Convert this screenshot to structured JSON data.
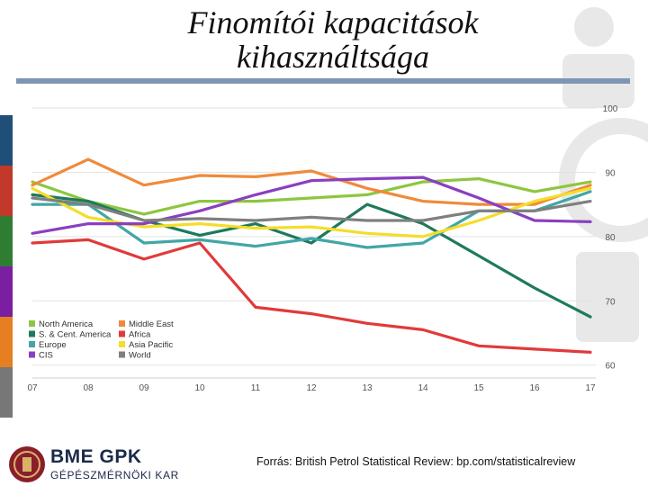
{
  "slide": {
    "title_line1": "Finomítói kapacitások",
    "title_line2": "kihasználtsága",
    "source": "Forrás: British Petrol Statistical Review: bp.com/statisticalreview",
    "logo_main": "BME GPK",
    "logo_sub": "GÉPÉSZMÉRNÖKI KAR"
  },
  "colors": {
    "title_bar": "#7e96b4",
    "side_stripes": [
      "#1f4e79",
      "#c0392b",
      "#2e7d32",
      "#7b1fa2",
      "#e67e22",
      "#777777"
    ]
  },
  "chart_data": {
    "type": "line",
    "x": [
      "07",
      "08",
      "09",
      "10",
      "11",
      "12",
      "13",
      "14",
      "15",
      "16",
      "17"
    ],
    "y_ticks": [
      "100",
      "90",
      "80",
      "70",
      "60"
    ],
    "ylim": [
      58,
      100
    ],
    "legend_position": "bottom-left",
    "grid": true,
    "series": [
      {
        "name": "North America",
        "color": "#8dc63f",
        "values": [
          88.5,
          85.5,
          83.5,
          85.5,
          85.5,
          86,
          86.5,
          88.5,
          89,
          87,
          88.5
        ]
      },
      {
        "name": "Middle East",
        "color": "#f08a3a",
        "values": [
          88,
          92,
          88,
          89.5,
          89.3,
          90.2,
          87.5,
          85.5,
          85,
          85,
          88
        ]
      },
      {
        "name": "S. & Cent. America",
        "color": "#1d7a5a",
        "values": [
          86.5,
          85.5,
          82.5,
          80.2,
          82,
          79,
          85,
          82,
          77,
          72,
          67.5
        ]
      },
      {
        "name": "Africa",
        "color": "#e03a3a",
        "values": [
          79,
          79.5,
          76.5,
          79,
          69,
          68,
          66.5,
          65.5,
          63,
          62.5,
          62
        ]
      },
      {
        "name": "Europe",
        "color": "#41a6a6",
        "values": [
          85,
          85,
          79,
          79.5,
          78.5,
          79.7,
          78.3,
          79,
          84,
          84,
          87
        ]
      },
      {
        "name": "Asia Pacific",
        "color": "#f5dd2a",
        "values": [
          87.5,
          83,
          81.5,
          82,
          81.3,
          81.5,
          80.5,
          80,
          82.5,
          85.5,
          87.5
        ]
      },
      {
        "name": "CIS",
        "color": "#8b3fbf",
        "values": [
          80.5,
          82,
          82,
          84,
          86.5,
          88.7,
          89,
          89.2,
          86,
          82.5,
          82.3
        ]
      },
      {
        "name": "World",
        "color": "#7f7f7f",
        "values": [
          86,
          85,
          82.5,
          82.8,
          82.5,
          83,
          82.5,
          82.5,
          84,
          84,
          85.5
        ]
      }
    ]
  }
}
